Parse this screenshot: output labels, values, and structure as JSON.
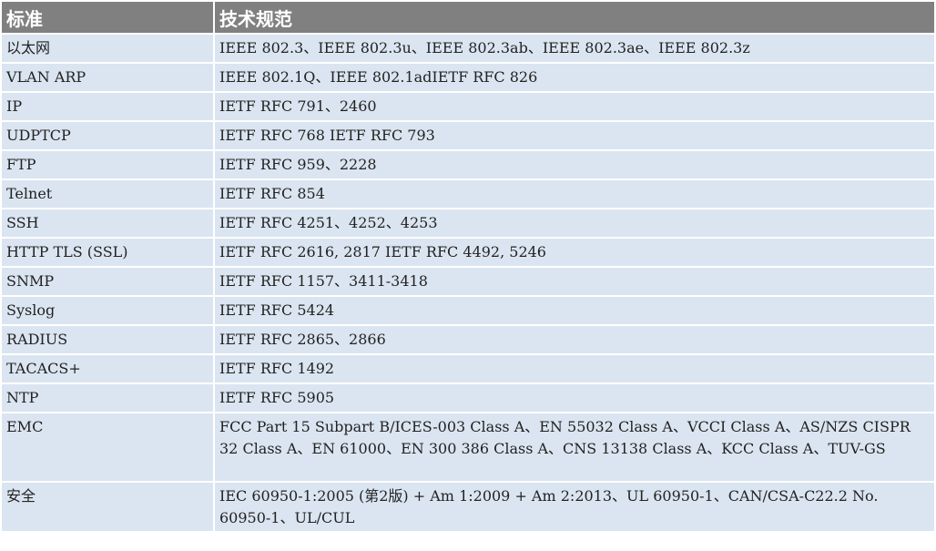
{
  "colors": {
    "header_bg": "#808080",
    "row_bg": "#dbe5f1",
    "border": "#ffffff"
  },
  "headers": [
    "标准",
    "技术规范"
  ],
  "rows": [
    {
      "standard": "以太网",
      "spec": "IEEE 802.3、IEEE 802.3u、IEEE 802.3ab、IEEE 802.3ae、IEEE 802.3z"
    },
    {
      "standard": "VLAN ARP",
      "spec": "IEEE 802.1Q、IEEE 802.1adIETF RFC 826"
    },
    {
      "standard": "IP",
      "spec": "IETF RFC 791、2460"
    },
    {
      "standard": "UDPTCP",
      "spec": "IETF RFC 768 IETF RFC 793"
    },
    {
      "standard": "FTP",
      "spec": "IETF RFC 959、2228"
    },
    {
      "standard": "Telnet",
      "spec": "IETF RFC 854"
    },
    {
      "standard": "SSH",
      "spec": "IETF RFC 4251、4252、4253"
    },
    {
      "standard": "HTTP TLS (SSL)",
      "spec": "IETF RFC 2616, 2817 IETF RFC 4492, 5246"
    },
    {
      "standard": "SNMP",
      "spec": "IETF RFC 1157、3411-3418"
    },
    {
      "standard": "Syslog",
      "spec": "IETF RFC 5424"
    },
    {
      "standard": "RADIUS",
      "spec": "IETF RFC 2865、2866"
    },
    {
      "standard": "TACACS+",
      "spec": "IETF RFC 1492"
    },
    {
      "standard": "NTP",
      "spec": "IETF RFC 5905"
    },
    {
      "standard": "EMC",
      "spec": "FCC Part 15 Subpart B/ICES-003 Class A、EN 55032 Class A、VCCI Class A、AS/NZS CISPR 32 Class A、EN 61000、EN 300 386 Class A、CNS 13138 Class A、KCC Class A、TUV-GS"
    },
    {
      "standard": "安全",
      "spec": "IEC 60950-1:2005 (第2版) + Am 1:2009 + Am 2:2013、UL 60950-1、CAN/CSA-C22.2 No. 60950-1、UL/CUL"
    }
  ]
}
